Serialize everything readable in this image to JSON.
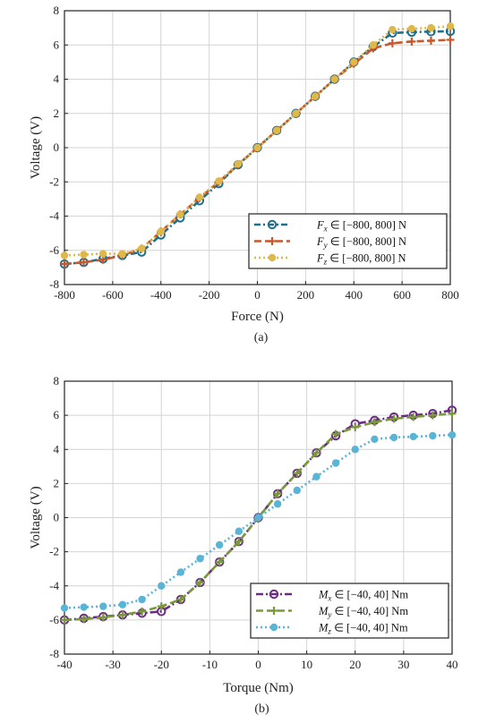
{
  "chart_data": [
    {
      "type": "line",
      "caption": "(a)",
      "xlabel": "Force (N)",
      "ylabel": "Voltage (V)",
      "xlim": [
        -800,
        800
      ],
      "ylim": [
        -8,
        8
      ],
      "xticks": [
        -800,
        -600,
        -400,
        -200,
        0,
        200,
        400,
        600,
        800
      ],
      "yticks": [
        -8,
        -6,
        -4,
        -2,
        0,
        2,
        4,
        6,
        8
      ],
      "grid": true,
      "legend_position": "bottom-right",
      "x": [
        -800,
        -720,
        -640,
        -560,
        -480,
        -400,
        -320,
        -240,
        -160,
        -80,
        0,
        80,
        160,
        240,
        320,
        400,
        480,
        560,
        640,
        720,
        800
      ],
      "series": [
        {
          "name": "F_x ∈ [−800, 800] N",
          "name_main": "F",
          "name_sub": "x",
          "name_rest": " ∈ [−800, 800] N",
          "color": "#1f6f8b",
          "dash": "7,3,2,3",
          "marker": "circle",
          "values": [
            -6.8,
            -6.7,
            -6.5,
            -6.3,
            -6.1,
            -5.1,
            -4.1,
            -3.1,
            -2.1,
            -1.0,
            0.0,
            1.0,
            2.0,
            3.0,
            4.0,
            5.0,
            5.9,
            6.7,
            6.75,
            6.78,
            6.8
          ]
        },
        {
          "name": "F_y ∈ [−800, 800] N",
          "name_main": "F",
          "name_sub": "y",
          "name_rest": " ∈ [−800, 800] N",
          "color": "#c8572b",
          "dash": "8,4",
          "marker": "plus",
          "values": [
            -6.8,
            -6.7,
            -6.55,
            -6.3,
            -5.9,
            -4.9,
            -3.9,
            -2.95,
            -2.0,
            -1.0,
            0.0,
            1.0,
            2.0,
            3.0,
            4.0,
            4.9,
            5.8,
            6.1,
            6.2,
            6.25,
            6.3
          ]
        },
        {
          "name": "F_z ∈ [−800, 800] N",
          "name_main": "F",
          "name_sub": "z",
          "name_rest": " ∈ [−800, 800] N",
          "color": "#e0b84a",
          "dash": "2,3",
          "marker": "dot",
          "values": [
            -6.3,
            -6.25,
            -6.2,
            -6.2,
            -5.9,
            -4.9,
            -3.9,
            -2.9,
            -1.95,
            -0.95,
            0.0,
            1.0,
            2.0,
            3.0,
            4.0,
            5.0,
            6.0,
            6.9,
            6.95,
            7.0,
            7.1
          ]
        }
      ],
      "legend_entries": [
        "F",
        "F",
        "F"
      ]
    },
    {
      "type": "line",
      "caption": "(b)",
      "xlabel": "Torque (Nm)",
      "ylabel": "Voltage (V)",
      "xlim": [
        -40,
        40
      ],
      "ylim": [
        -8,
        8
      ],
      "xticks": [
        -40,
        -30,
        -20,
        -10,
        0,
        10,
        20,
        30,
        40
      ],
      "yticks": [
        -8,
        -6,
        -4,
        -2,
        0,
        2,
        4,
        6,
        8
      ],
      "grid": true,
      "legend_position": "bottom-right",
      "x": [
        -40,
        -36,
        -32,
        -28,
        -24,
        -20,
        -16,
        -12,
        -8,
        -4,
        0,
        4,
        8,
        12,
        16,
        20,
        24,
        28,
        32,
        36,
        40
      ],
      "series": [
        {
          "name": "M_x ∈ [−40, 40] Nm",
          "name_main": "M",
          "name_sub": "x",
          "name_rest": " ∈ [−40, 40] Nm",
          "color": "#6a2c84",
          "dash": "8,3,2,3",
          "marker": "circle",
          "values": [
            -6.0,
            -5.9,
            -5.8,
            -5.7,
            -5.6,
            -5.5,
            -4.8,
            -3.8,
            -2.6,
            -1.4,
            0.0,
            1.4,
            2.6,
            3.8,
            4.8,
            5.5,
            5.7,
            5.9,
            6.0,
            6.1,
            6.3
          ]
        },
        {
          "name": "M_y ∈ [−40, 40] Nm",
          "name_main": "M",
          "name_sub": "y",
          "name_rest": " ∈ [−40, 40] Nm",
          "color": "#7a9a3a",
          "dash": "8,4",
          "marker": "plus",
          "values": [
            -6.0,
            -5.95,
            -5.85,
            -5.7,
            -5.5,
            -5.2,
            -4.8,
            -3.8,
            -2.6,
            -1.4,
            0.0,
            1.4,
            2.6,
            3.8,
            4.9,
            5.3,
            5.6,
            5.8,
            5.9,
            6.0,
            6.1
          ]
        },
        {
          "name": "M_z ∈ [−40, 40] Nm",
          "name_main": "M",
          "name_sub": "z",
          "name_rest": " ∈ [−40, 40] Nm",
          "color": "#5ab4d6",
          "dash": "2,3",
          "marker": "dot",
          "values": [
            -5.3,
            -5.25,
            -5.2,
            -5.1,
            -4.8,
            -4.0,
            -3.2,
            -2.4,
            -1.6,
            -0.8,
            0.0,
            0.8,
            1.6,
            2.4,
            3.2,
            4.0,
            4.6,
            4.7,
            4.75,
            4.8,
            4.85
          ]
        }
      ]
    }
  ]
}
